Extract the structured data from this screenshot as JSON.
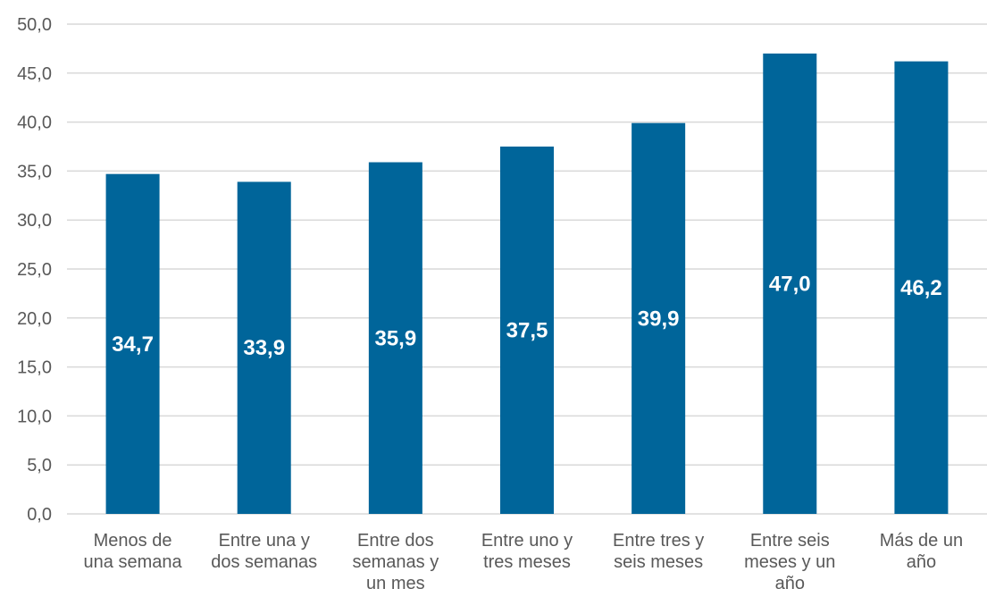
{
  "chart_data": {
    "type": "bar",
    "categories": [
      [
        "Menos de",
        "una semana"
      ],
      [
        "Entre una y",
        "dos semanas"
      ],
      [
        "Entre dos",
        "semanas y",
        "un mes"
      ],
      [
        "Entre uno y",
        "tres meses"
      ],
      [
        "Entre tres y",
        "seis meses"
      ],
      [
        "Entre seis",
        "meses y un",
        "año"
      ],
      [
        "Más de un",
        "año"
      ]
    ],
    "values": [
      34.7,
      33.9,
      35.9,
      37.5,
      39.9,
      47.0,
      46.2
    ],
    "data_labels": [
      "34,7",
      "33,9",
      "35,9",
      "37,5",
      "39,9",
      "47,0",
      "46,2"
    ],
    "y_ticks": [
      "0,0",
      "5,0",
      "10,0",
      "15,0",
      "20,0",
      "25,0",
      "30,0",
      "35,0",
      "40,0",
      "45,0",
      "50,0"
    ],
    "ylim": [
      0,
      50
    ],
    "grid": true,
    "bar_color": "#00659A",
    "grid_color": "#D9D9D9",
    "title": "",
    "xlabel": "",
    "ylabel": ""
  }
}
